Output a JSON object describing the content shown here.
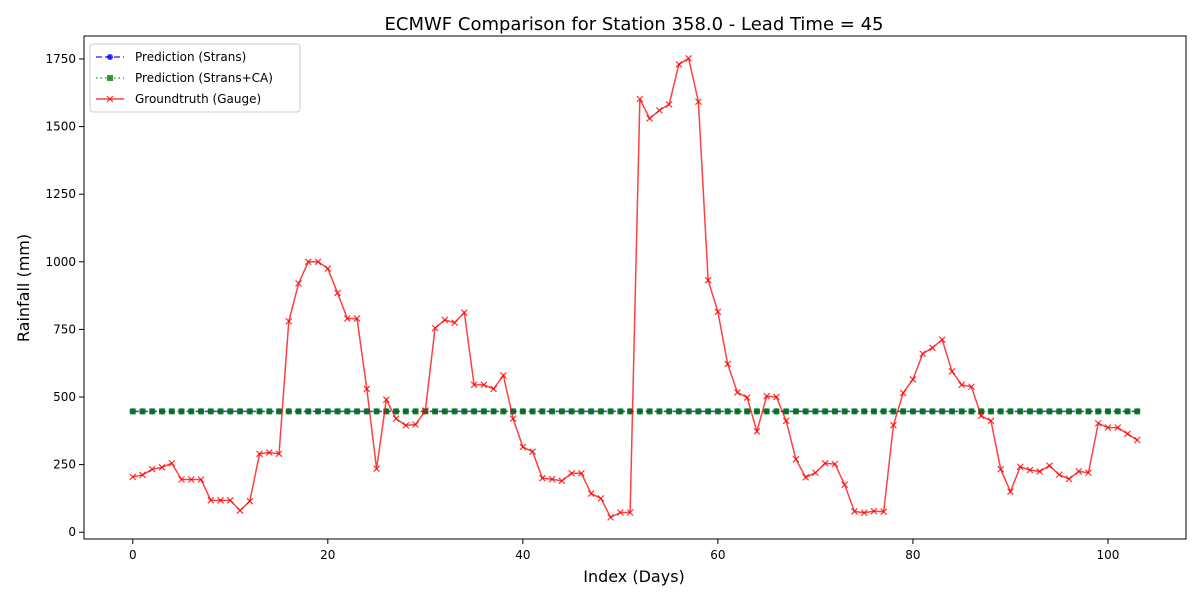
{
  "chart_data": {
    "type": "line",
    "title": "ECMWF Comparison for Station 358.0 - Lead Time = 45",
    "xlabel": "Index (Days)",
    "ylabel": "Rainfall (mm)",
    "xlim": [
      -5,
      108
    ],
    "ylim": [
      -25,
      1835
    ],
    "xticks": [
      0,
      20,
      40,
      60,
      80,
      100
    ],
    "yticks": [
      0,
      250,
      500,
      750,
      1000,
      1250,
      1500,
      1750
    ],
    "grid": false,
    "legend_position": "top-left",
    "x": [
      0,
      1,
      2,
      3,
      4,
      5,
      6,
      7,
      8,
      9,
      10,
      11,
      12,
      13,
      14,
      15,
      16,
      17,
      18,
      19,
      20,
      21,
      22,
      23,
      24,
      25,
      26,
      27,
      28,
      29,
      30,
      31,
      32,
      33,
      34,
      35,
      36,
      37,
      38,
      39,
      40,
      41,
      42,
      43,
      44,
      45,
      46,
      47,
      48,
      49,
      50,
      51,
      52,
      53,
      54,
      55,
      56,
      57,
      58,
      59,
      60,
      61,
      62,
      63,
      64,
      65,
      66,
      67,
      68,
      69,
      70,
      71,
      72,
      73,
      74,
      75,
      76,
      77,
      78,
      79,
      80,
      81,
      82,
      83,
      84,
      85,
      86,
      87,
      88,
      89,
      90,
      91,
      92,
      93,
      94,
      95,
      96,
      97,
      98,
      99,
      100,
      101,
      102,
      103
    ],
    "series": [
      {
        "name": "Prediction (Strans)",
        "color": "#0000ff",
        "style": "dashed",
        "marker": "circle",
        "values": [
          447,
          447,
          447,
          447,
          447,
          447,
          447,
          447,
          447,
          447,
          447,
          447,
          447,
          447,
          447,
          447,
          447,
          447,
          447,
          447,
          447,
          447,
          447,
          447,
          447,
          447,
          447,
          447,
          447,
          447,
          447,
          447,
          447,
          447,
          447,
          447,
          447,
          447,
          447,
          447,
          447,
          447,
          447,
          447,
          447,
          447,
          447,
          447,
          447,
          447,
          447,
          447,
          447,
          447,
          447,
          447,
          447,
          447,
          447,
          447,
          447,
          447,
          447,
          447,
          447,
          447,
          447,
          447,
          447,
          447,
          447,
          447,
          447,
          447,
          447,
          447,
          447,
          447,
          447,
          447,
          447,
          447,
          447,
          447,
          447,
          447,
          447,
          447,
          447,
          447,
          447,
          447,
          447,
          447,
          447,
          447,
          447,
          447,
          447,
          447,
          447,
          447,
          447,
          447
        ]
      },
      {
        "name": "Prediction (Strans+CA)",
        "color": "#008000",
        "style": "dotted",
        "marker": "square",
        "values": [
          447,
          447,
          447,
          447,
          447,
          447,
          447,
          447,
          447,
          447,
          447,
          447,
          447,
          447,
          447,
          447,
          447,
          447,
          447,
          447,
          447,
          447,
          447,
          447,
          447,
          447,
          447,
          447,
          447,
          447,
          447,
          447,
          447,
          447,
          447,
          447,
          447,
          447,
          447,
          447,
          447,
          447,
          447,
          447,
          447,
          447,
          447,
          447,
          447,
          447,
          447,
          447,
          447,
          447,
          447,
          447,
          447,
          447,
          447,
          447,
          447,
          447,
          447,
          447,
          447,
          447,
          447,
          447,
          447,
          447,
          447,
          447,
          447,
          447,
          447,
          447,
          447,
          447,
          447,
          447,
          447,
          447,
          447,
          447,
          447,
          447,
          447,
          447,
          447,
          447,
          447,
          447,
          447,
          447,
          447,
          447,
          447,
          447,
          447,
          447,
          447,
          447,
          447,
          447
        ]
      },
      {
        "name": "Groundtruth (Gauge)",
        "color": "#ff0000",
        "style": "solid",
        "marker": "x",
        "values": [
          205,
          212,
          233,
          240,
          255,
          195,
          195,
          195,
          118,
          118,
          118,
          80,
          115,
          290,
          295,
          290,
          780,
          920,
          1000,
          1000,
          975,
          885,
          790,
          790,
          530,
          235,
          490,
          420,
          395,
          398,
          450,
          755,
          785,
          775,
          812,
          545,
          545,
          530,
          580,
          420,
          315,
          298,
          200,
          196,
          190,
          218,
          218,
          143,
          125,
          55,
          73,
          73,
          1602,
          1530,
          1560,
          1582,
          1730,
          1752,
          1592,
          932,
          815,
          622,
          517,
          498,
          373,
          503,
          500,
          412,
          270,
          203,
          220,
          255,
          252,
          176,
          77,
          72,
          78,
          76,
          396,
          515,
          565,
          660,
          682,
          712,
          595,
          545,
          538,
          430,
          412,
          233,
          150,
          242,
          230,
          225,
          246,
          213,
          197,
          225,
          220,
          403,
          387,
          387,
          364,
          341
        ]
      }
    ]
  }
}
